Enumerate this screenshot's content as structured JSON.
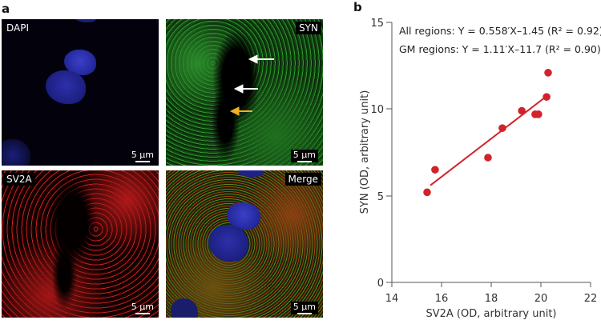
{
  "figure": {
    "panel_a": {
      "letter": "a",
      "panels": [
        {
          "label": "DAPI",
          "scale": "5 μm",
          "channel": "blue"
        },
        {
          "label": "SYN",
          "scale": "5 μm",
          "channel": "green"
        },
        {
          "label": "SV2A",
          "scale": "5 μm",
          "channel": "red"
        },
        {
          "label": "Merge",
          "scale": "5 μm",
          "channel": "merge"
        }
      ],
      "arrows": [
        {
          "color": "#ffffff",
          "panel": "SYN"
        },
        {
          "color": "#ffffff",
          "panel": "SYN"
        },
        {
          "color": "#f0b020",
          "panel": "SYN"
        }
      ]
    },
    "panel_b": {
      "letter": "b",
      "annotation_all": "All regions: Y = 0.558′X–1.45 (R² = 0.92)",
      "annotation_gm": "GM regions: Y = 1.11′X–11.7 (R² = 0.90)"
    }
  },
  "chart_data": {
    "type": "scatter",
    "title": "",
    "xlabel": "SV2A (OD, arbitrary unit)",
    "ylabel": "SYN (OD, arbitrary unit)",
    "xlim": [
      14,
      22
    ],
    "ylim": [
      0,
      15
    ],
    "xticks": [
      14,
      16,
      18,
      20,
      22
    ],
    "yticks": [
      0,
      5,
      10,
      15
    ],
    "grid": false,
    "color": "#d2232a",
    "series": [
      {
        "name": "GM regions",
        "x": [
          15.42,
          15.74,
          17.87,
          18.45,
          19.23,
          19.77,
          19.9,
          20.23,
          20.29
        ],
        "y": [
          5.2,
          6.5,
          7.2,
          8.9,
          9.9,
          9.7,
          9.7,
          10.7,
          12.1
        ]
      }
    ],
    "fit_line": {
      "x": [
        15.55,
        20.1
      ],
      "y": [
        5.6,
        10.6
      ],
      "equation": "Y = 1.11′X–11.7"
    },
    "annotations": [
      "All regions: Y = 0.558′X–1.45 (R² = 0.92)",
      "GM regions: Y = 1.11′X–11.7 (R² = 0.90)"
    ]
  }
}
